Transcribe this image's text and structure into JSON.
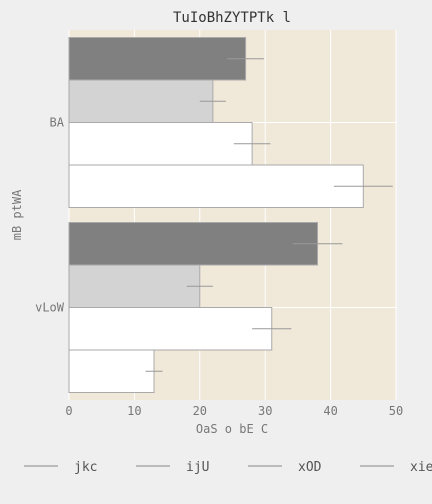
{
  "chart_data": {
    "type": "bar",
    "orientation": "horizontal",
    "title": "TuIoBhZYTPTk l",
    "xlabel": "OaS  o bE C",
    "ylabel": "mB ptWA",
    "categories": [
      "BA",
      "vLoW"
    ],
    "xlim": [
      0,
      50
    ],
    "xticks": [
      0,
      10,
      20,
      30,
      40,
      50
    ],
    "grid": true,
    "legend_position": "bottom",
    "series": [
      {
        "name": "jkc",
        "color": "#808080",
        "values": [
          27,
          38
        ],
        "errors": [
          2.8,
          3.8
        ]
      },
      {
        "name": "ijU",
        "color": "#d3d3d3",
        "values": [
          22,
          20
        ],
        "errors": [
          2.0,
          2.0
        ]
      },
      {
        "name": "xOD",
        "color": "#ffffff",
        "values": [
          28,
          31
        ],
        "errors": [
          2.8,
          3.0
        ]
      },
      {
        "name": "xie",
        "color": "#ffffff",
        "values": [
          45,
          13
        ],
        "errors": [
          4.5,
          1.3
        ]
      }
    ],
    "colors": {
      "plot_bg": "#f0e8d8",
      "page_bg": "#efefef",
      "grid": "#ffffff",
      "bar_edge": "#aaaaaa",
      "error_bar": "#999999",
      "text": "#777777"
    }
  }
}
